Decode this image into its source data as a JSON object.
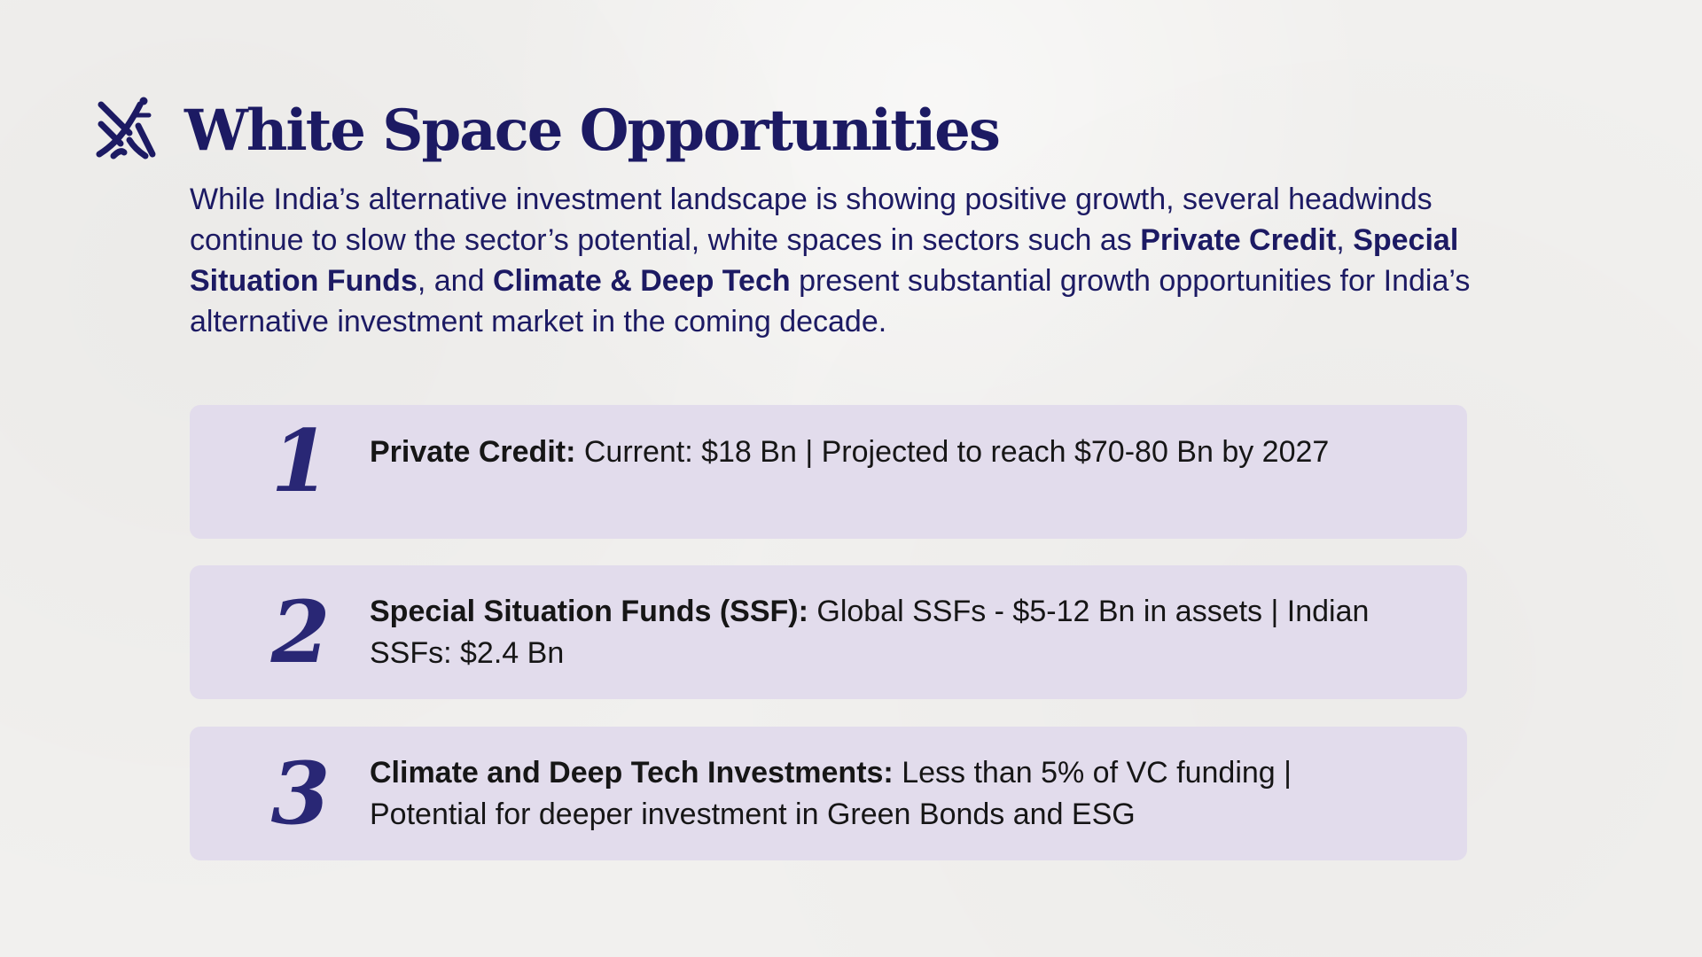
{
  "header": {
    "title": "White Space Opportunities"
  },
  "intro": {
    "part1": "While India’s alternative investment landscape is showing positive growth, several headwinds continue to slow the sector’s potential, white spaces in sectors such as ",
    "bold1": "Private Credit",
    "sep1": ", ",
    "bold2": "Special Situation Funds",
    "sep2": ", and ",
    "bold3": "Climate & Deep Tech",
    "part2": " present substantial growth opportunities for India’s alternative investment market in the coming decade."
  },
  "items": [
    {
      "number": "1",
      "label": "Private Credit:",
      "text": " Current: $18 Bn  |  Projected to reach $70-80 Bn by 2027"
    },
    {
      "number": "2",
      "label": "Special Situation Funds (SSF):",
      "text": " Global SSFs - $5-12 Bn in assets | Indian SSFs: $2.4 Bn"
    },
    {
      "number": "3",
      "label": "Climate and Deep Tech Investments:",
      "text": " Less than 5% of VC funding | Potential for deeper investment in Green Bonds and ESG"
    }
  ],
  "colors": {
    "navy": "#1c1a63",
    "card_bg": "#e2dcec",
    "background": "#f1f0ee",
    "body_text": "#161616"
  },
  "icons": {
    "logo": "brand-monogram-icon"
  }
}
